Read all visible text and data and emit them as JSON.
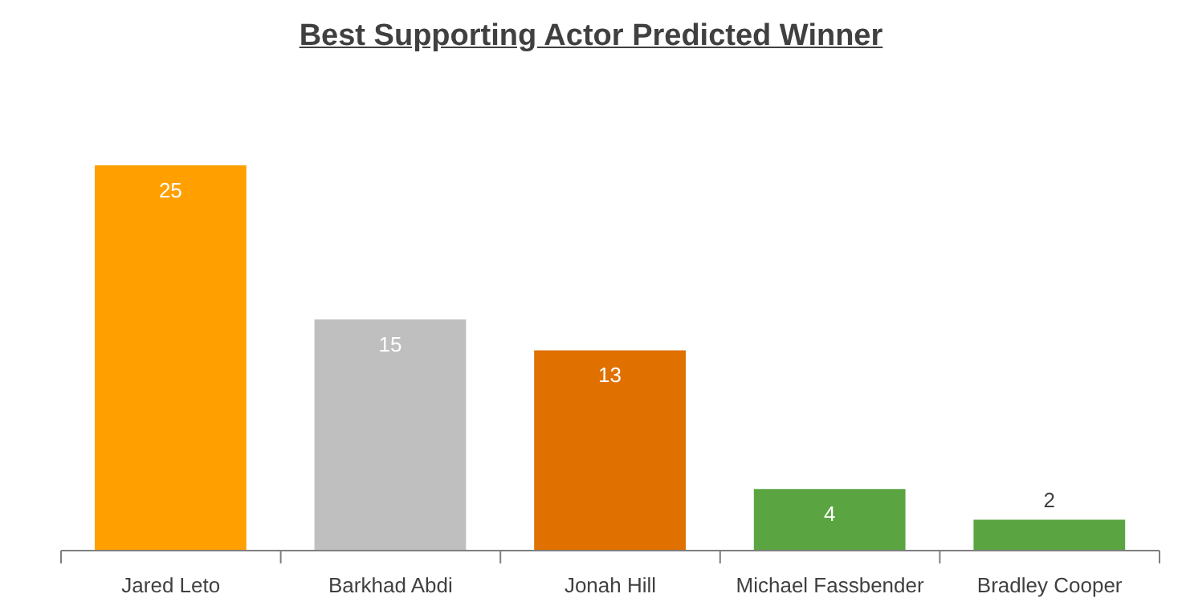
{
  "chart_data": {
    "type": "bar",
    "title": "Best Supporting Actor Predicted Winner",
    "categories": [
      "Jared Leto",
      "Barkhad Abdi",
      "Jonah Hill",
      "Michael Fassbender",
      "Bradley Cooper"
    ],
    "values": [
      25,
      15,
      13,
      4,
      2
    ],
    "colors": [
      "#ffa000",
      "#bfbfbf",
      "#e07000",
      "#5aa541",
      "#5aa541"
    ],
    "data_labels": true,
    "grid": false,
    "legend": false
  }
}
